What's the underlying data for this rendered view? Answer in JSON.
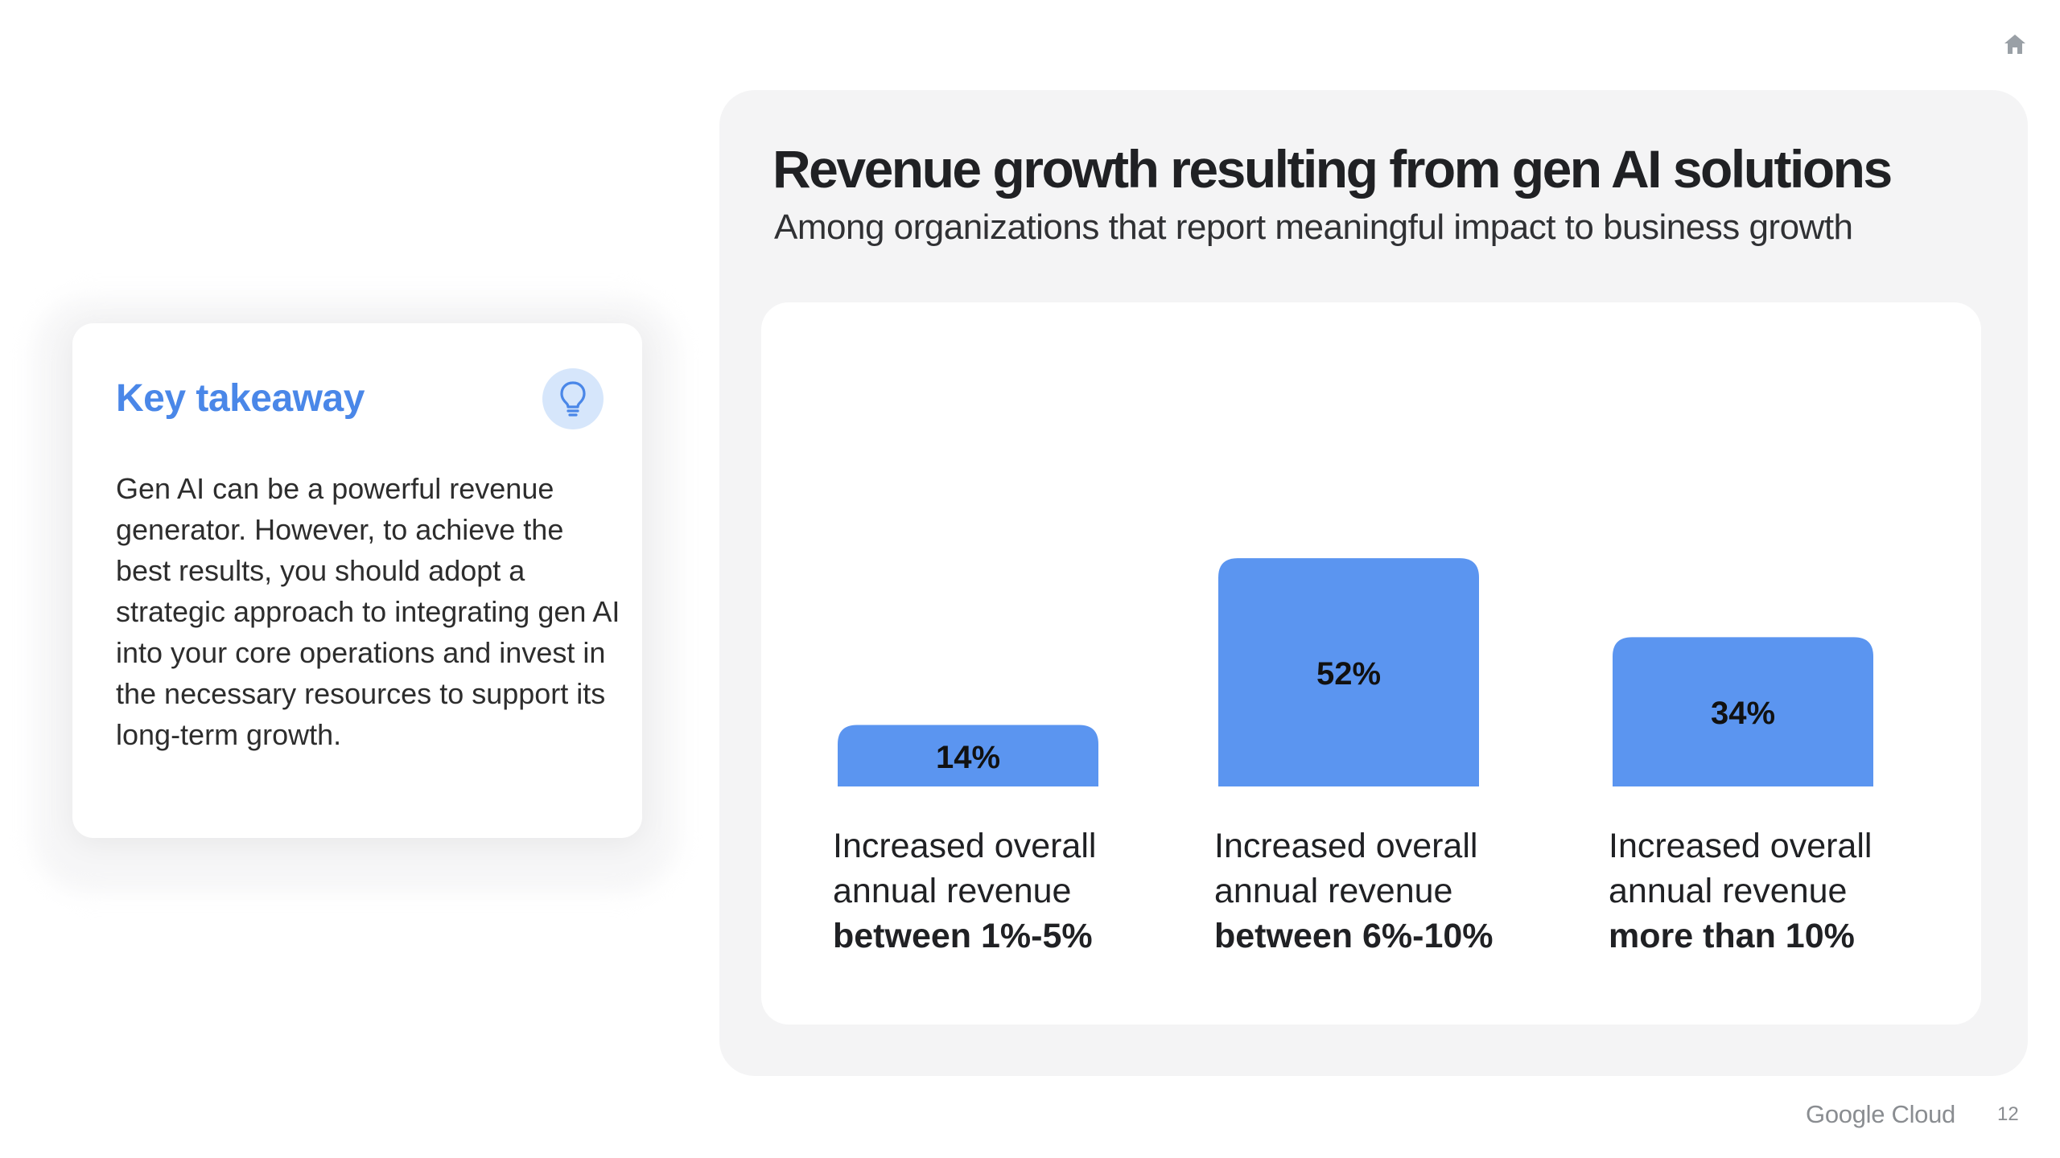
{
  "takeaway": {
    "title": "Key takeaway",
    "icon": "lightbulb-icon",
    "body": "Gen AI can be a powerful revenue generator. However, to achieve the best results, you should adopt a strategic approach to integrating gen AI into your core operations and invest in the necessary resources to support its long-term growth."
  },
  "chart_data": {
    "type": "bar",
    "title": "Revenue growth resulting from gen AI solutions",
    "subtitle": "Among organizations that report meaningful impact to business growth",
    "categories": [
      {
        "line1": "Increased overall",
        "line2": "annual revenue",
        "bold": "between 1%-5%"
      },
      {
        "line1": "Increased overall",
        "line2": "annual revenue",
        "bold": "between 6%-10%"
      },
      {
        "line1": "Increased overall",
        "line2": "annual revenue",
        "bold": "more than 10%"
      }
    ],
    "values": [
      14,
      52,
      34
    ],
    "data_labels": [
      "14%",
      "52%",
      "34%"
    ],
    "bar_color": "#5b95f0",
    "ylim": [
      0,
      100
    ],
    "grid": false,
    "legend": "none"
  },
  "footer": {
    "brand": "Google Cloud",
    "page_number": "12"
  },
  "icons": {
    "home": "home-icon"
  }
}
